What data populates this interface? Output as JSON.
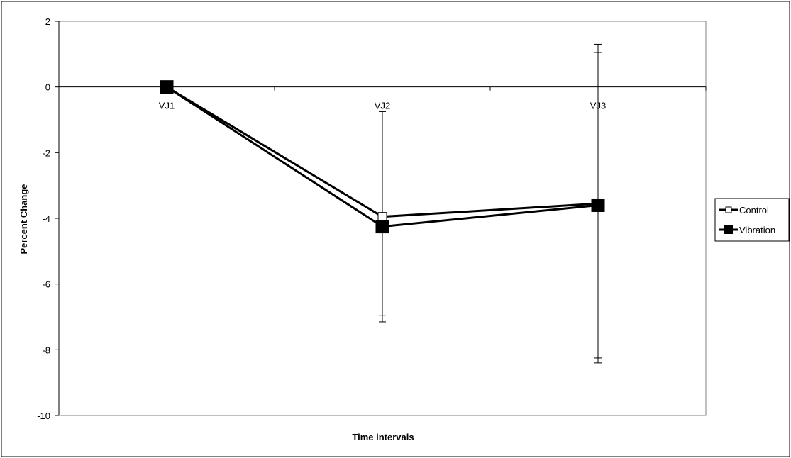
{
  "chart_data": {
    "type": "line",
    "title": "",
    "xlabel": "Time intervals",
    "ylabel": "Percent Change",
    "categories": [
      "VJ1",
      "VJ2",
      "VJ3"
    ],
    "ylim": [
      -10,
      2
    ],
    "yticks": [
      2,
      0,
      -2,
      -4,
      -6,
      -8,
      -10
    ],
    "grid": false,
    "legend_position": "right",
    "series": [
      {
        "name": "Control",
        "values": [
          0,
          -3.95,
          -3.55
        ],
        "error": [
          0,
          3.2,
          4.85
        ],
        "marker": "hollow-square",
        "color": "#000000"
      },
      {
        "name": "Vibration",
        "values": [
          0,
          -4.25,
          -3.6
        ],
        "error": [
          0,
          2.7,
          4.65
        ],
        "marker": "filled-square",
        "color": "#000000"
      }
    ]
  }
}
